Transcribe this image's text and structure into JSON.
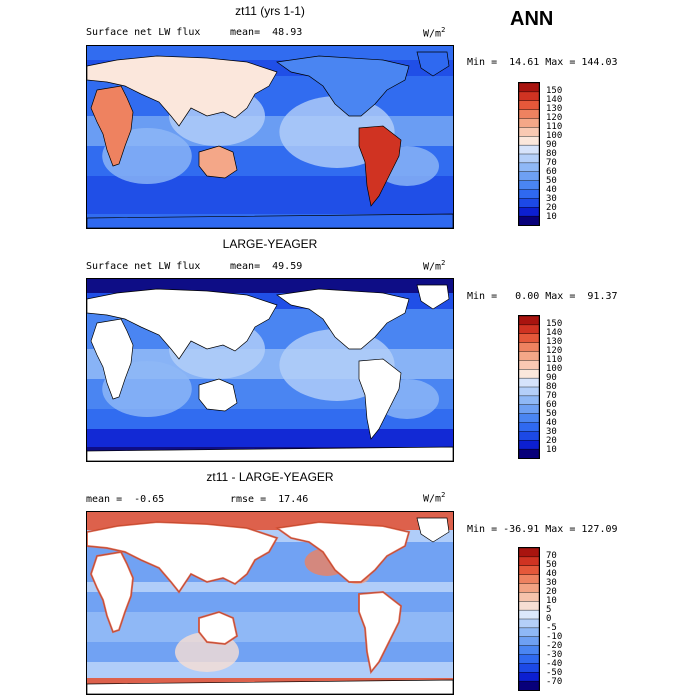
{
  "season": "ANN",
  "palette_flux": [
    "#08007a",
    "#0c1fd1",
    "#1c49e6",
    "#2f69f0",
    "#4a85f2",
    "#6ea0f3",
    "#8fb8f6",
    "#b4cff9",
    "#d6e3fb",
    "#fbe7dc",
    "#f9c9b3",
    "#f4a788",
    "#ee8260",
    "#e5583a",
    "#d03322",
    "#a9140f"
  ],
  "palette_diff": [
    "#08007a",
    "#0c1fd1",
    "#1c49e6",
    "#2f69f0",
    "#4a85f2",
    "#6ea0f3",
    "#8fb8f6",
    "#b4cff9",
    "#dce8fb",
    "#f7ded3",
    "#f6c3ab",
    "#f3a383",
    "#ee8260",
    "#e5583a",
    "#d03322",
    "#a9140f"
  ],
  "panels": [
    {
      "title": "zt11 (yrs 1-1)",
      "left_label": "Surface net LW flux",
      "stat_label": "mean=  48.93",
      "units": "W/m",
      "units_sup": "2",
      "minmax": "Min =  14.61 Max = 144.03",
      "ocean_only": false,
      "colorbar_labels": [
        "150",
        "140",
        "130",
        "120",
        "110",
        "100",
        "90",
        "80",
        "70",
        "60",
        "50",
        "40",
        "30",
        "20",
        "10"
      ],
      "chart_data": {
        "type": "heatmap",
        "variable": "Surface net LW flux",
        "units": "W/m2",
        "mean": 48.93,
        "min": 14.61,
        "max": 144.03,
        "levels": [
          10,
          20,
          30,
          40,
          50,
          60,
          70,
          80,
          90,
          100,
          110,
          120,
          130,
          140,
          150
        ]
      }
    },
    {
      "title": "LARGE-YEAGER",
      "left_label": "Surface net LW flux",
      "stat_label": "mean=  49.59",
      "units": "W/m",
      "units_sup": "2",
      "minmax": "Min =   0.00 Max =  91.37",
      "ocean_only": true,
      "colorbar_labels": [
        "150",
        "140",
        "130",
        "120",
        "110",
        "100",
        "90",
        "80",
        "70",
        "60",
        "50",
        "40",
        "30",
        "20",
        "10"
      ],
      "chart_data": {
        "type": "heatmap",
        "variable": "Surface net LW flux",
        "units": "W/m2",
        "mean": 49.59,
        "min": 0.0,
        "max": 91.37,
        "levels": [
          10,
          20,
          30,
          40,
          50,
          60,
          70,
          80,
          90,
          100,
          110,
          120,
          130,
          140,
          150
        ]
      }
    },
    {
      "title": "zt11 - LARGE-YEAGER",
      "left_label": "mean =  -0.65",
      "stat_label": "rmse =  17.46",
      "units": "W/m",
      "units_sup": "2",
      "minmax": "Min = -36.91 Max = 127.09",
      "ocean_only": true,
      "colorbar_labels": [
        "70",
        "50",
        "40",
        "30",
        "20",
        "10",
        "5",
        "0",
        "-5",
        "-10",
        "-20",
        "-30",
        "-40",
        "-50",
        "-70"
      ],
      "chart_data": {
        "type": "heatmap",
        "variable": "difference",
        "units": "W/m2",
        "mean": -0.65,
        "rmse": 17.46,
        "min": -36.91,
        "max": 127.09,
        "levels": [
          -70,
          -50,
          -40,
          -30,
          -20,
          -10,
          -5,
          0,
          5,
          10,
          20,
          30,
          40,
          50,
          70
        ]
      }
    }
  ]
}
